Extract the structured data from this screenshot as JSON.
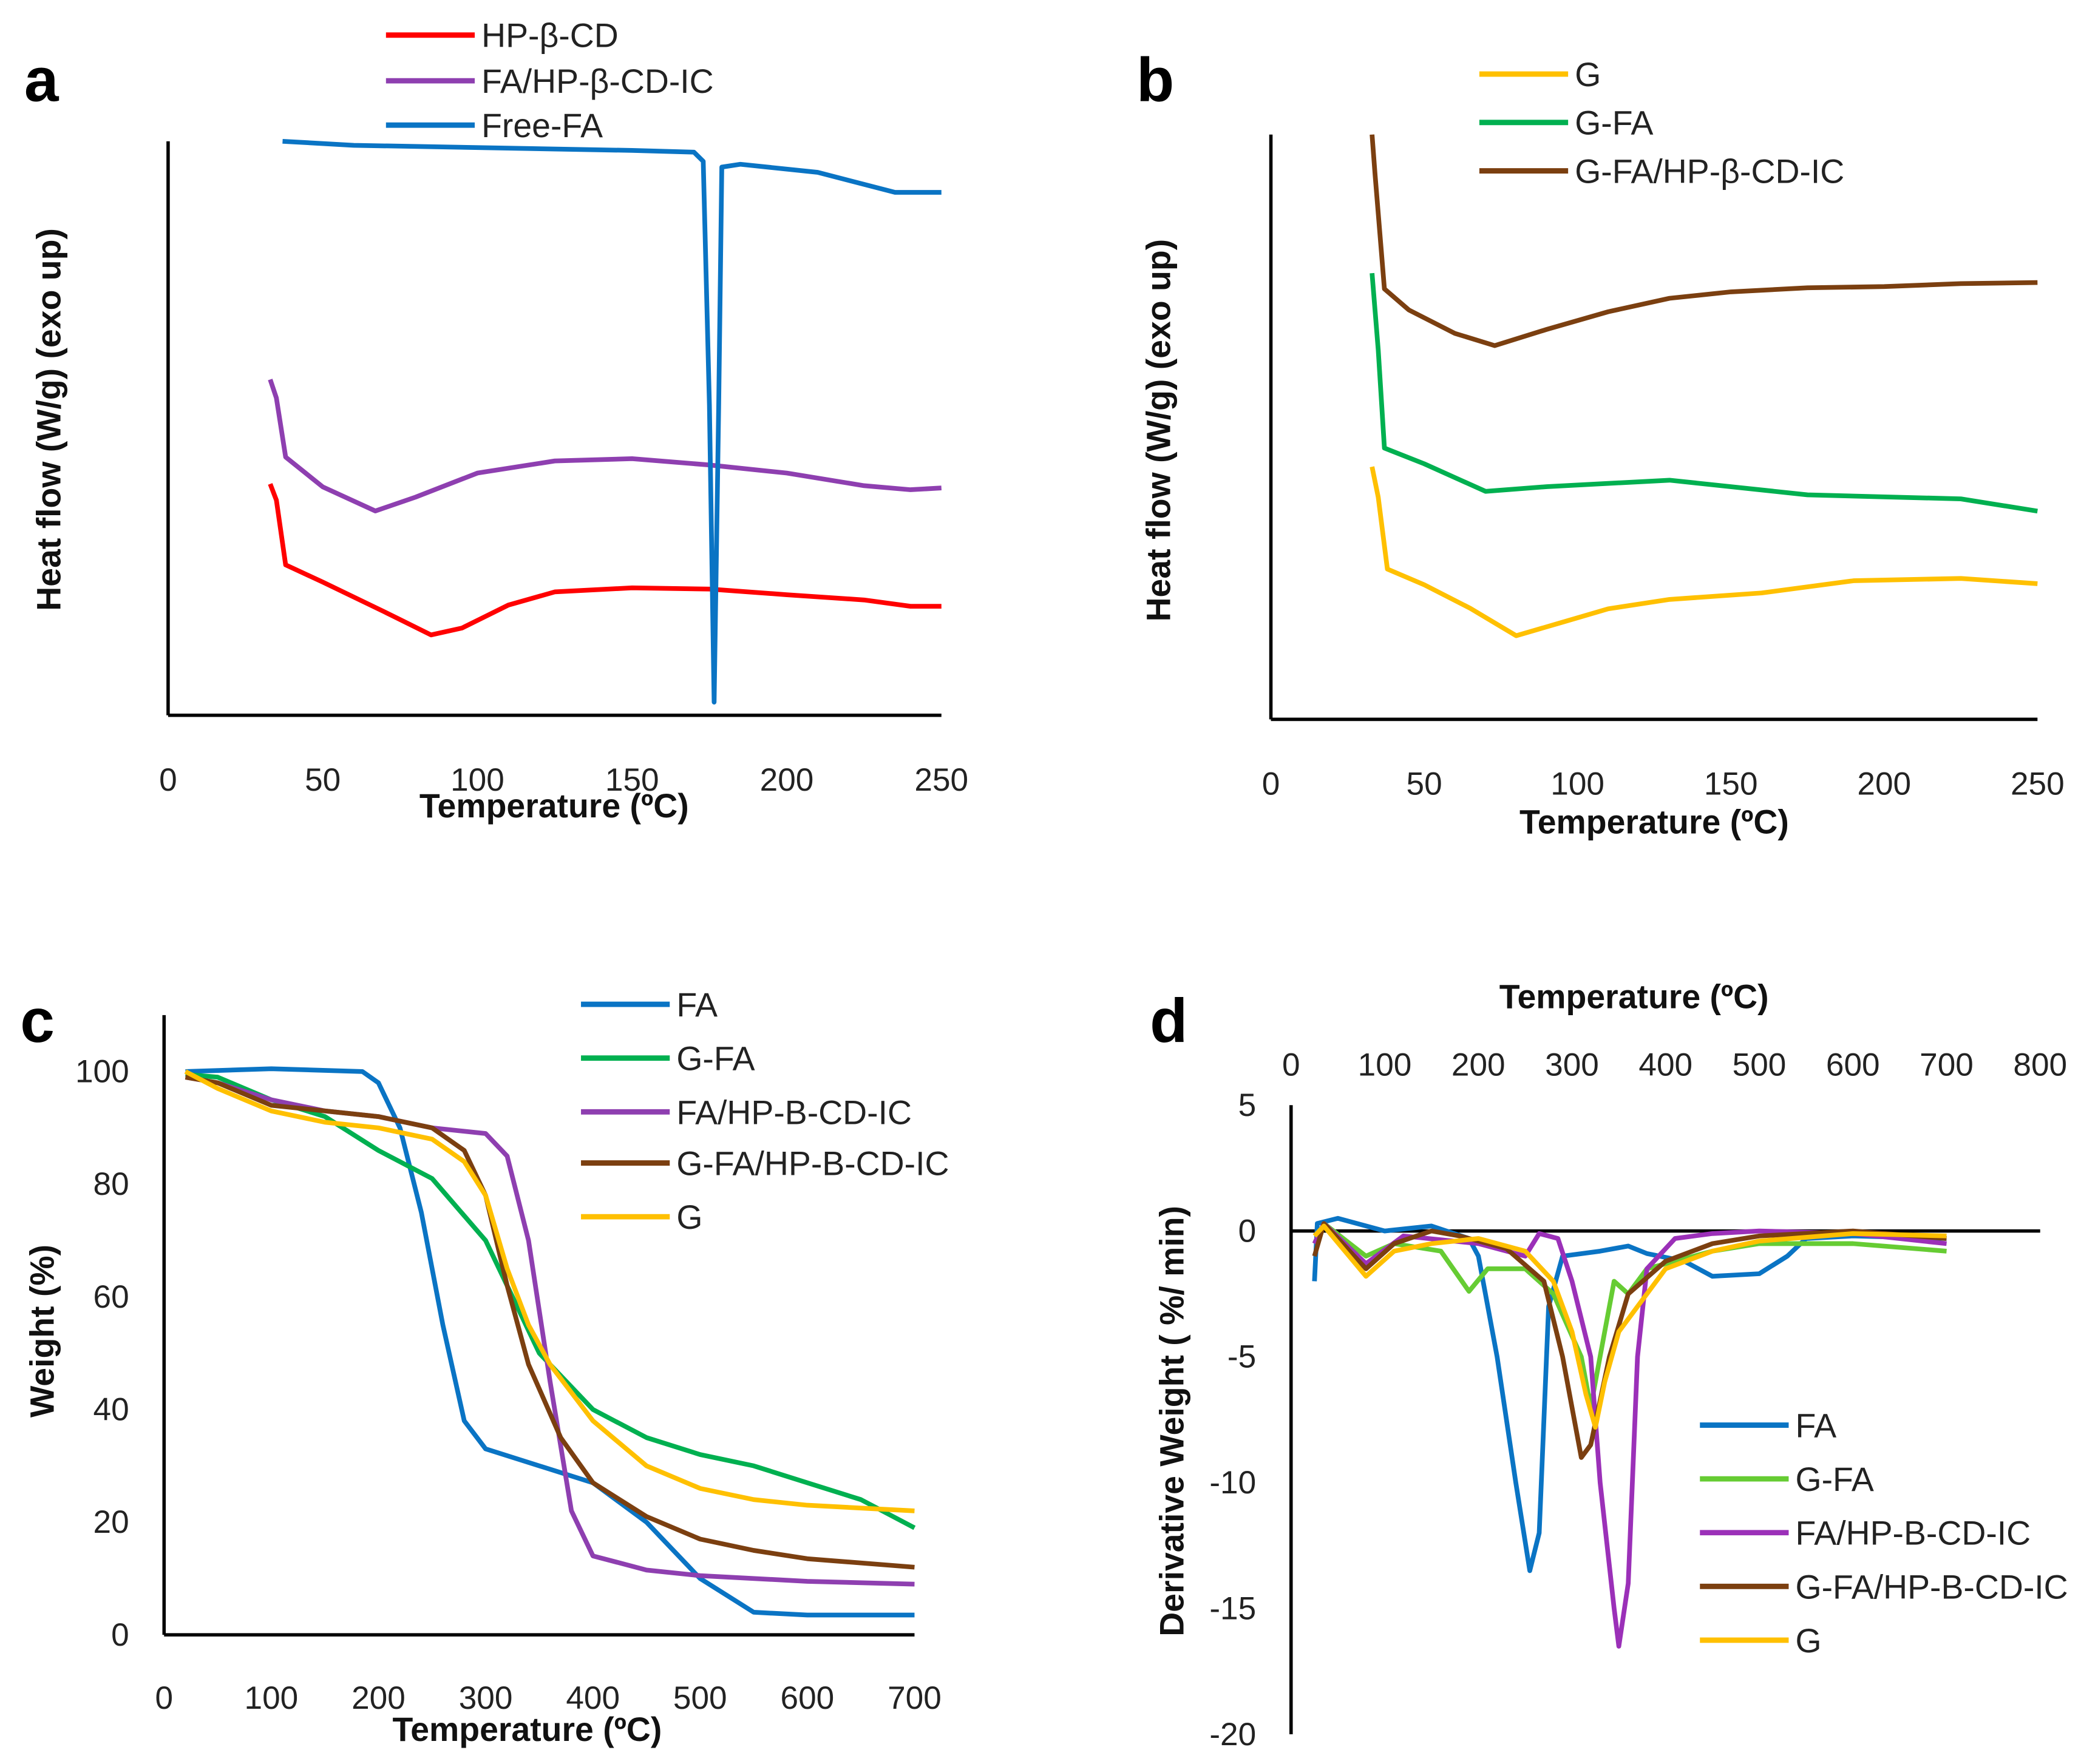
{
  "chart_data": [
    {
      "panel": "a",
      "type": "line",
      "xlabel": "Temperature (ºC)",
      "ylabel": "Heat flow (W/g) (exo up)",
      "xlim": [
        0,
        250
      ],
      "xticks": [
        0,
        50,
        100,
        150,
        200,
        250
      ],
      "ylim": [
        0,
        100
      ],
      "y_units": "arbitrary (no tick labels)",
      "grid": false,
      "legend": "top",
      "series": [
        {
          "name": "HP-β-CD",
          "color": "#ff0000",
          "x": [
            33,
            35,
            38,
            50,
            70,
            85,
            95,
            110,
            125,
            150,
            175,
            200,
            225,
            240,
            250
          ],
          "y": [
            40.3,
            37.5,
            26.2,
            23.2,
            18,
            14,
            15.2,
            19.2,
            21.5,
            22.2,
            22,
            21,
            20.1,
            19,
            19
          ]
        },
        {
          "name": "FA/HP-β-CD-IC",
          "color": "#8e3fb0",
          "x": [
            33,
            35,
            38,
            50,
            67,
            80,
            100,
            125,
            150,
            175,
            200,
            225,
            240,
            250
          ],
          "y": [
            58.5,
            55.3,
            45,
            39.8,
            35.6,
            38,
            42.2,
            44.3,
            44.7,
            43.6,
            42.2,
            40,
            39.3,
            39.6
          ]
        },
        {
          "name": "Free-FA",
          "color": "#0a74c4",
          "x": [
            37,
            60,
            150,
            170,
            173,
            175,
            176.5,
            178,
            179,
            185,
            210,
            235,
            250
          ],
          "y": [
            100,
            99.3,
            98.4,
            98.1,
            96.5,
            54,
            2.3,
            54,
            95.5,
            96,
            94.6,
            91.1,
            91.1
          ]
        }
      ]
    },
    {
      "panel": "b",
      "type": "line",
      "xlabel": "Temperature (ºC)",
      "ylabel": "Heat flow (W/g) (exo up)",
      "xlim": [
        0,
        250
      ],
      "xticks": [
        0,
        50,
        100,
        150,
        200,
        250
      ],
      "ylim": [
        0,
        100
      ],
      "y_units": "arbitrary (no tick labels)",
      "grid": false,
      "legend": "top",
      "series": [
        {
          "name": "G",
          "color": "#ffc000",
          "x": [
            33,
            35,
            38,
            50,
            65,
            80,
            95,
            110,
            130,
            160,
            190,
            225,
            250
          ],
          "y": [
            43.2,
            38,
            25.7,
            23,
            19,
            14.3,
            16.6,
            18.9,
            20.5,
            21.6,
            23.7,
            24.1,
            23.2
          ]
        },
        {
          "name": "G-FA",
          "color": "#00b050",
          "x": [
            33,
            35,
            37,
            50,
            70,
            90,
            130,
            175,
            225,
            250
          ],
          "y": [
            76.3,
            63.2,
            46.4,
            43.7,
            39,
            39.8,
            40.9,
            38.4,
            37.7,
            35.6
          ]
        },
        {
          "name": "G-FA/HP-β-CD-IC",
          "color": "#7b3f10",
          "x": [
            33,
            34,
            37,
            45,
            60,
            73,
            90,
            110,
            130,
            150,
            175,
            200,
            225,
            250
          ],
          "y": [
            100,
            93,
            73.6,
            70,
            66,
            63.9,
            66.7,
            69.7,
            72,
            73.1,
            73.8,
            74,
            74.5,
            74.7
          ]
        }
      ]
    },
    {
      "panel": "c",
      "type": "line",
      "xlabel": "Temperature (ºC)",
      "ylabel": "Weight (%)",
      "xlim": [
        0,
        700
      ],
      "xticks": [
        0,
        100,
        200,
        300,
        400,
        500,
        600,
        700
      ],
      "ylim": [
        0,
        110
      ],
      "yticks": [
        0,
        20,
        40,
        60,
        80,
        100
      ],
      "grid": false,
      "legend": "top-right",
      "series": [
        {
          "name": "FA",
          "color": "#0a74c4",
          "x": [
            20,
            100,
            185,
            200,
            220,
            240,
            260,
            280,
            300,
            350,
            400,
            450,
            500,
            550,
            600,
            700
          ],
          "y": [
            100,
            100.5,
            100,
            98,
            90,
            75,
            55,
            38,
            33,
            30,
            27,
            20,
            10,
            4,
            3.5,
            3.5
          ]
        },
        {
          "name": "G-FA",
          "color": "#00b050",
          "x": [
            20,
            50,
            100,
            150,
            200,
            250,
            300,
            330,
            350,
            400,
            450,
            500,
            550,
            600,
            650,
            700
          ],
          "y": [
            99.5,
            99,
            95,
            92,
            86,
            81,
            70,
            58,
            50,
            40,
            35,
            32,
            30,
            27,
            24,
            19
          ]
        },
        {
          "name": "FA/HP-B-CD-IC",
          "color": "#8e3fb0",
          "x": [
            20,
            50,
            100,
            150,
            200,
            250,
            300,
            320,
            340,
            360,
            380,
            400,
            450,
            500,
            600,
            700
          ],
          "y": [
            99,
            98,
            95,
            93,
            92,
            90,
            89,
            85,
            70,
            45,
            22,
            14,
            11.5,
            10.5,
            9.5,
            9
          ]
        },
        {
          "name": "G-FA/HP-B-CD-IC",
          "color": "#7b3f10",
          "x": [
            20,
            50,
            100,
            150,
            200,
            250,
            280,
            300,
            320,
            340,
            370,
            400,
            450,
            500,
            550,
            600,
            700
          ],
          "y": [
            99,
            98,
            94,
            93,
            92,
            90,
            86,
            78,
            62,
            48,
            35,
            27,
            21,
            17,
            15,
            13.5,
            12
          ]
        },
        {
          "name": "G",
          "color": "#ffc000",
          "x": [
            20,
            50,
            100,
            150,
            200,
            250,
            280,
            300,
            320,
            340,
            360,
            400,
            450,
            500,
            550,
            600,
            700
          ],
          "y": [
            100,
            97,
            93,
            91,
            90,
            88,
            84,
            78,
            65,
            55,
            48,
            38,
            30,
            26,
            24,
            23,
            22
          ]
        }
      ]
    },
    {
      "panel": "d",
      "type": "line",
      "xlabel": "Temperature (ºC)",
      "xaxis_position": "top",
      "ylabel": "Derivative Weight ( %/ min)",
      "xlim": [
        0,
        800
      ],
      "xticks": [
        0,
        100,
        200,
        300,
        400,
        500,
        600,
        700,
        800
      ],
      "ylim": [
        -20,
        5
      ],
      "yticks": [
        5,
        0,
        -5,
        -10,
        -15,
        -20
      ],
      "grid": false,
      "legend": "bottom-right",
      "series": [
        {
          "name": "FA",
          "color": "#0a74c4",
          "x": [
            25,
            28,
            50,
            100,
            150,
            190,
            200,
            220,
            240,
            255,
            265,
            275,
            290,
            330,
            360,
            380,
            420,
            450,
            500,
            530,
            550,
            600,
            700
          ],
          "y": [
            -2,
            0.3,
            0.5,
            0,
            0.2,
            -0.3,
            -1,
            -5,
            -10,
            -13.5,
            -12,
            -3,
            -1,
            -0.8,
            -0.6,
            -0.9,
            -1.2,
            -1.8,
            -1.7,
            -1,
            -0.3,
            -0.2,
            -0.3
          ]
        },
        {
          "name": "G-FA",
          "color": "#66cc33",
          "x": [
            25,
            35,
            80,
            110,
            160,
            190,
            210,
            250,
            280,
            310,
            320,
            335,
            345,
            360,
            380,
            450,
            500,
            600,
            700
          ],
          "y": [
            -0.5,
            0.3,
            -1,
            -0.5,
            -0.8,
            -2.4,
            -1.5,
            -1.5,
            -2.5,
            -5,
            -7,
            -4,
            -2,
            -2.5,
            -1.5,
            -0.8,
            -0.5,
            -0.5,
            -0.8
          ]
        },
        {
          "name": "FA/HP-B-CD-IC",
          "color": "#9b30b8",
          "x": [
            25,
            35,
            80,
            120,
            200,
            250,
            265,
            285,
            300,
            320,
            330,
            345,
            350,
            360,
            370,
            380,
            410,
            450,
            500,
            600,
            700
          ],
          "y": [
            -0.5,
            0.3,
            -1.3,
            -0.2,
            -0.5,
            -1,
            -0.1,
            -0.3,
            -2,
            -5,
            -10,
            -15,
            -16.5,
            -14,
            -5,
            -1.5,
            -0.3,
            -0.1,
            0,
            -0.1,
            -0.5
          ]
        },
        {
          "name": "G-FA/HP-B-CD-IC",
          "color": "#7b3f10",
          "x": [
            25,
            35,
            80,
            110,
            150,
            180,
            230,
            270,
            290,
            310,
            320,
            340,
            360,
            400,
            450,
            500,
            600,
            700
          ],
          "y": [
            -1,
            0.3,
            -1.5,
            -0.5,
            0,
            -0.2,
            -0.7,
            -2,
            -5,
            -9,
            -8.5,
            -5,
            -2.5,
            -1.2,
            -0.5,
            -0.2,
            0,
            -0.3
          ]
        },
        {
          "name": "G",
          "color": "#ffc000",
          "x": [
            25,
            35,
            80,
            110,
            150,
            200,
            250,
            280,
            300,
            315,
            325,
            335,
            350,
            370,
            400,
            450,
            500,
            600,
            700
          ],
          "y": [
            -0.2,
            0.2,
            -1.8,
            -0.8,
            -0.5,
            -0.3,
            -0.8,
            -2,
            -4,
            -6.5,
            -7.8,
            -6,
            -4,
            -3,
            -1.5,
            -0.8,
            -0.4,
            -0.1,
            -0.2
          ]
        }
      ]
    }
  ],
  "panel_labels": [
    "a",
    "b",
    "c",
    "d"
  ]
}
